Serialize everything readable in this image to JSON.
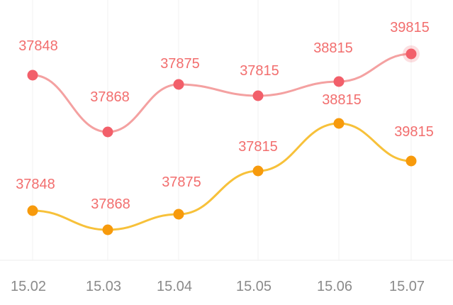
{
  "chart_data": {
    "type": "line",
    "title": "",
    "xlabel": "",
    "ylabel": "",
    "categories": [
      "15.02",
      "15.03",
      "15.04",
      "15.05",
      "15.06",
      "15.07"
    ],
    "series": [
      {
        "line_color": "#f4a1a1",
        "marker_color": "#f25f6a",
        "label_color": "#f26e6e",
        "values": [
          37848,
          37868,
          37875,
          37815,
          38815,
          39815
        ],
        "highlighted_index": 5
      },
      {
        "line_color": "#f7c13a",
        "marker_color": "#f79a0c",
        "label_color": "#f26e6e",
        "values": [
          37848,
          37868,
          37875,
          37815,
          38815,
          39815
        ]
      }
    ],
    "grid": {
      "vertical": true,
      "horizontal": false
    },
    "legend": "none"
  }
}
